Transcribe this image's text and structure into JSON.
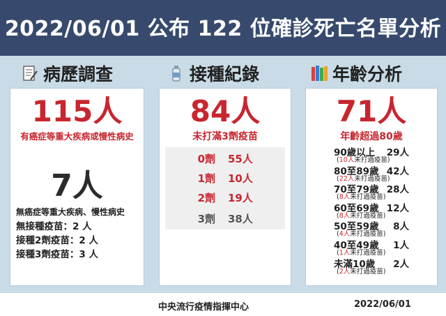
{
  "title": "2022/06/01 公布 122 位確診死亡名單分析",
  "sections": {
    "history": {
      "heading": "病歷調查",
      "icon": "document-icon",
      "main_count": "115人",
      "main_desc": "有癌症等重大疾病或慢性病史",
      "secondary_count": "7人",
      "secondary_desc": "無癌症等重大疾病、慢性病史",
      "lines": [
        "無接種疫苗：2 人",
        "接種2劑疫苗：2 人",
        "接種3劑疫苗：3 人"
      ]
    },
    "vaccination": {
      "heading": "接種紀錄",
      "icon": "vaccine-bottle-icon",
      "main_count": "84人",
      "main_desc": "未打滿3劑疫苗",
      "doses": [
        {
          "dose": "0劑",
          "count": "55人",
          "color": "#c7262f"
        },
        {
          "dose": "1劑",
          "count": "10人",
          "color": "#c7262f"
        },
        {
          "dose": "2劑",
          "count": "19人",
          "color": "#c7262f"
        },
        {
          "dose": "3劑",
          "count": "38人",
          "color": "#555555"
        }
      ]
    },
    "age": {
      "heading": "年齡分析",
      "icon": "books-icon",
      "main_count": "71人",
      "main_desc": "年齡超過80歲",
      "rows": [
        {
          "label": "90歲以上",
          "value": "29人",
          "note_num": "10人",
          "note_text": "未打過疫苗"
        },
        {
          "label": "80至89歲",
          "value": "42人",
          "note_num": "22人",
          "note_text": "未打過疫苗"
        },
        {
          "label": "70至79歲",
          "value": "28人",
          "note_num": "8人",
          "note_text": "未打過疫苗"
        },
        {
          "label": "60至69歲",
          "value": "12人",
          "note_num": "8人",
          "note_text": "未打過疫苗"
        },
        {
          "label": "50至59歲",
          "value": "8人",
          "note_num": "4人",
          "note_text": "未打過疫苗"
        },
        {
          "label": "40至49歲",
          "value": "1人",
          "note_num": "1人",
          "note_text": "未打過疫苗"
        },
        {
          "label": "未滿10歲",
          "value": "2人",
          "note_num": "2人",
          "note_text": "未打過疫苗"
        }
      ]
    }
  },
  "footer": {
    "center": "中央流行疫情指揮中心",
    "date": "2022/06/01"
  },
  "colors": {
    "title_bg": "#374a6d",
    "panel_bg": "#c9dbe6",
    "accent_red": "#c7262f",
    "dose_box_bg": "#efefef"
  }
}
